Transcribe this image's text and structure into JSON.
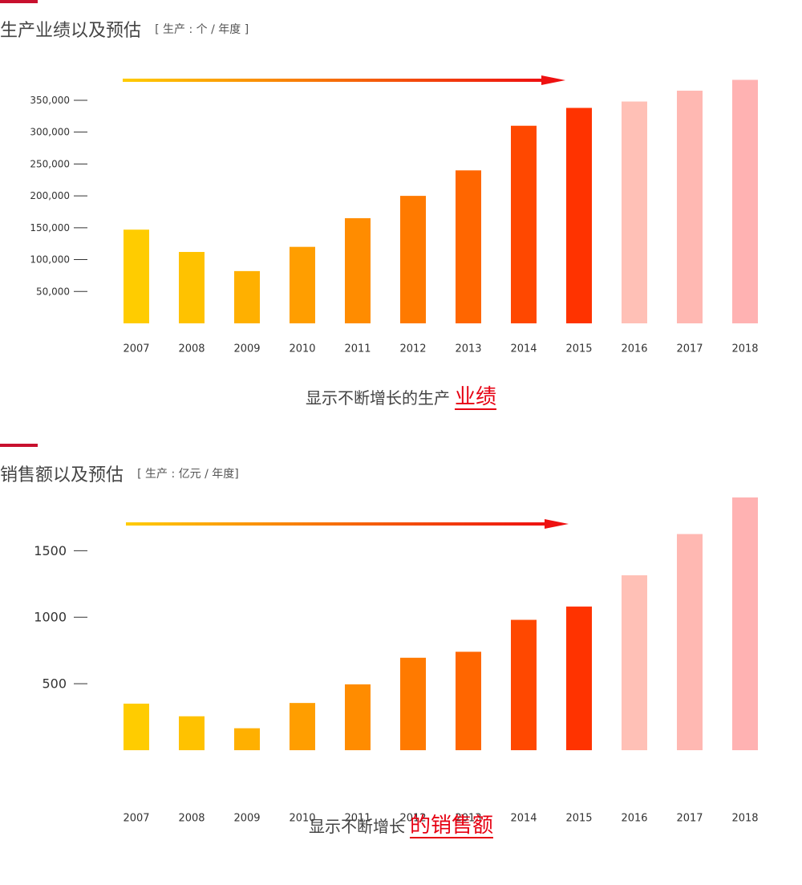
{
  "sections": [
    {
      "heading": {
        "title": "生产业绩以及预估",
        "unit": "[ 生产 : 个 / 年度 ]"
      },
      "caption": {
        "lead": "显示不断增长的生产",
        "highlight": "业绩"
      }
    },
    {
      "heading": {
        "title": "销售额以及预估",
        "unit": "[ 生产 : 亿元 / 年度]"
      },
      "caption": {
        "lead": "显示不断增长",
        "highlight": "的销售额"
      }
    }
  ],
  "colors": {
    "accent": "#c8102e",
    "highlight_text": "#e60012",
    "arrow_start": "#ffcc00",
    "arrow_end": "#ee1111",
    "actual_bars": [
      "#ffcc00",
      "#ffc200",
      "#ffb000",
      "#ff9e00",
      "#ff8c00",
      "#ff7a00",
      "#ff6600",
      "#ff4800",
      "#ff3300"
    ],
    "forecast_bars": [
      "#ffc0b6",
      "#ffb8b2",
      "#ffb2b2"
    ]
  },
  "chart_data": [
    {
      "type": "bar",
      "categories": [
        "2007",
        "2008",
        "2009",
        "2010",
        "2011",
        "2012",
        "2013",
        "2014",
        "2015",
        "2016",
        "2017",
        "2018"
      ],
      "values": [
        147000,
        112000,
        82000,
        120000,
        165000,
        200000,
        240000,
        310000,
        338000,
        348000,
        365000,
        382000
      ],
      "forecast_from_index": 9,
      "ylim": [
        0,
        360000
      ],
      "yticks": [
        50000,
        100000,
        150000,
        200000,
        250000,
        300000,
        350000
      ],
      "ytick_labels": [
        "50,000",
        "100,000",
        "150,000",
        "200,000",
        "250,000",
        "300,000",
        "350,000"
      ],
      "title": "",
      "xlabel": "",
      "ylabel": "",
      "grid": false,
      "trend_arrow": true
    },
    {
      "type": "bar",
      "categories": [
        "2007",
        "2008",
        "2009",
        "2010",
        "2011",
        "2012",
        "2013",
        "2014",
        "2015",
        "2016",
        "2017",
        "2018"
      ],
      "values": [
        350,
        255,
        165,
        355,
        495,
        695,
        740,
        980,
        1080,
        1315,
        1625,
        1940
      ],
      "forecast_from_index": 9,
      "ylim": [
        0,
        1900
      ],
      "yticks": [
        500,
        1000,
        1500
      ],
      "ytick_labels": [
        "500",
        "1000",
        "1500"
      ],
      "title": "",
      "xlabel": "",
      "ylabel": "",
      "grid": false,
      "trend_arrow": true
    }
  ]
}
